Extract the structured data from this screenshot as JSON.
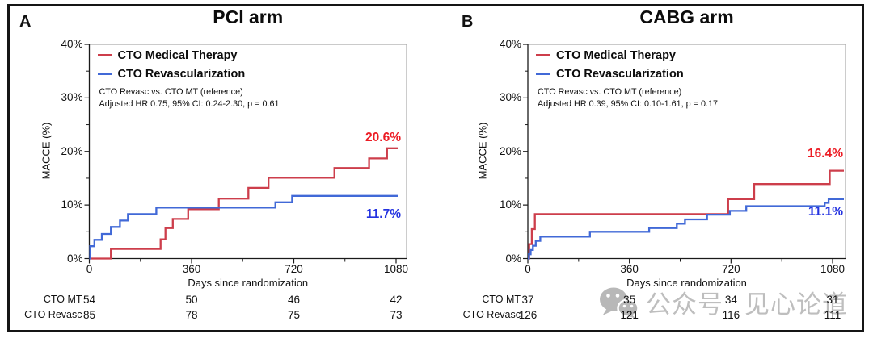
{
  "panels": [
    {
      "letter": "A",
      "title": "PCI arm",
      "ylabel": "MACCE (%)",
      "xlabel": "Days since randomization",
      "ytick_labels": [
        "0%",
        "10%",
        "20%",
        "30%",
        "40%"
      ],
      "xtick_labels": [
        "0",
        "360",
        "720",
        "1080"
      ],
      "legend": [
        {
          "label": "CTO Medical Therapy",
          "color": "#CD3E4B"
        },
        {
          "label": "CTO Revascularization",
          "color": "#4169D7"
        }
      ],
      "annotation": [
        "CTO Revasc vs. CTO MT (reference)",
        "Adjusted HR 0.75, 95% CI: 0.24-2.30, p = 0.61"
      ],
      "end_labels": [
        {
          "text": "20.6%",
          "color": "#EC1C24"
        },
        {
          "text": "11.7%",
          "color": "#2433E0"
        }
      ],
      "risk_table": {
        "rows": [
          {
            "label": "CTO MT",
            "values": [
              "54",
              "50",
              "46",
              "42"
            ]
          },
          {
            "label": "CTO Revasc",
            "values": [
              "85",
              "78",
              "75",
              "73"
            ]
          }
        ]
      },
      "chart_data": {
        "type": "line",
        "subtype": "kaplan-meier-step",
        "title": "PCI arm",
        "xlabel": "Days since randomization",
        "ylabel": "MACCE (%)",
        "xlim": [
          0,
          1080
        ],
        "ylim": [
          0,
          40
        ],
        "xticks": [
          0,
          360,
          720,
          1080
        ],
        "xticks_minor": [
          180,
          540,
          900
        ],
        "yticks": [
          0,
          10,
          20,
          30,
          40
        ],
        "yticks_minor": [
          5,
          15,
          25,
          35
        ],
        "grid": false,
        "legend_position": "top-left",
        "series": [
          {
            "name": "CTO Medical Therapy",
            "color": "#CD3E4B",
            "final_value_label": "20.6%",
            "step_points": [
              [
                0,
                0
              ],
              [
                76,
                1.8
              ],
              [
                251,
                3.6
              ],
              [
                268,
                5.7
              ],
              [
                294,
                7.4
              ],
              [
                348,
                9.2
              ],
              [
                456,
                11.2
              ],
              [
                560,
                13.2
              ],
              [
                631,
                15.1
              ],
              [
                863,
                16.9
              ],
              [
                985,
                18.7
              ],
              [
                1048,
                20.6
              ]
            ]
          },
          {
            "name": "CTO Revascularization",
            "color": "#4169D7",
            "final_value_label": "11.7%",
            "step_points": [
              [
                0,
                0
              ],
              [
                3,
                2.3
              ],
              [
                18,
                3.5
              ],
              [
                44,
                4.6
              ],
              [
                76,
                5.9
              ],
              [
                108,
                7.1
              ],
              [
                136,
                8.3
              ],
              [
                236,
                9.5
              ],
              [
                655,
                10.5
              ],
              [
                714,
                11.7
              ]
            ]
          }
        ]
      }
    },
    {
      "letter": "B",
      "title": "CABG arm",
      "ylabel": "MACCE (%)",
      "xlabel": "Days since randomization",
      "ytick_labels": [
        "0%",
        "10%",
        "20%",
        "30%",
        "40%"
      ],
      "xtick_labels": [
        "0",
        "360",
        "720",
        "1080"
      ],
      "legend": [
        {
          "label": "CTO Medical Therapy",
          "color": "#CD3E4B"
        },
        {
          "label": "CTO Revascularization",
          "color": "#4169D7"
        }
      ],
      "annotation": [
        "CTO Revasc vs. CTO MT (reference)",
        "Adjusted HR 0.39, 95% CI: 0.10-1.61, p = 0.17"
      ],
      "end_labels": [
        {
          "text": "16.4%",
          "color": "#EC1C24"
        },
        {
          "text": "11.1%",
          "color": "#2433E0"
        }
      ],
      "risk_table": {
        "rows": [
          {
            "label": "CTO MT",
            "values": [
              "37",
              "35",
              "34",
              "31"
            ]
          },
          {
            "label": "CTO Revasc",
            "values": [
              "126",
              "121",
              "116",
              "111"
            ]
          }
        ]
      },
      "chart_data": {
        "type": "line",
        "subtype": "kaplan-meier-step",
        "title": "CABG arm",
        "xlabel": "Days since randomization",
        "ylabel": "MACCE (%)",
        "xlim": [
          0,
          1080
        ],
        "ylim": [
          0,
          40
        ],
        "xticks": [
          0,
          360,
          720,
          1080
        ],
        "xticks_minor": [
          180,
          540,
          900
        ],
        "yticks": [
          0,
          10,
          20,
          30,
          40
        ],
        "yticks_minor": [
          5,
          15,
          25,
          35
        ],
        "grid": false,
        "legend_position": "top-left",
        "series": [
          {
            "name": "CTO Medical Therapy",
            "color": "#CD3E4B",
            "final_value_label": "16.4%",
            "step_points": [
              [
                0,
                0
              ],
              [
                5,
                2.7
              ],
              [
                14,
                5.5
              ],
              [
                25,
                8.3
              ],
              [
                710,
                11.1
              ],
              [
                802,
                13.9
              ],
              [
                1070,
                16.4
              ]
            ]
          },
          {
            "name": "CTO Revascularization",
            "color": "#4169D7",
            "final_value_label": "11.1%",
            "step_points": [
              [
                0,
                0
              ],
              [
                4,
                0.8
              ],
              [
                10,
                1.6
              ],
              [
                18,
                2.4
              ],
              [
                28,
                3.3
              ],
              [
                44,
                4.1
              ],
              [
                220,
                5.0
              ],
              [
                430,
                5.7
              ],
              [
                528,
                6.5
              ],
              [
                557,
                7.3
              ],
              [
                635,
                8.2
              ],
              [
                716,
                8.9
              ],
              [
                774,
                9.8
              ],
              [
                1052,
                10.4
              ],
              [
                1066,
                11.1
              ]
            ]
          }
        ]
      }
    }
  ],
  "watermark": {
    "icon": "wechat-icon",
    "text_left": "公众号",
    "text_right": "见心论道",
    "color": "#b3b3b3"
  }
}
